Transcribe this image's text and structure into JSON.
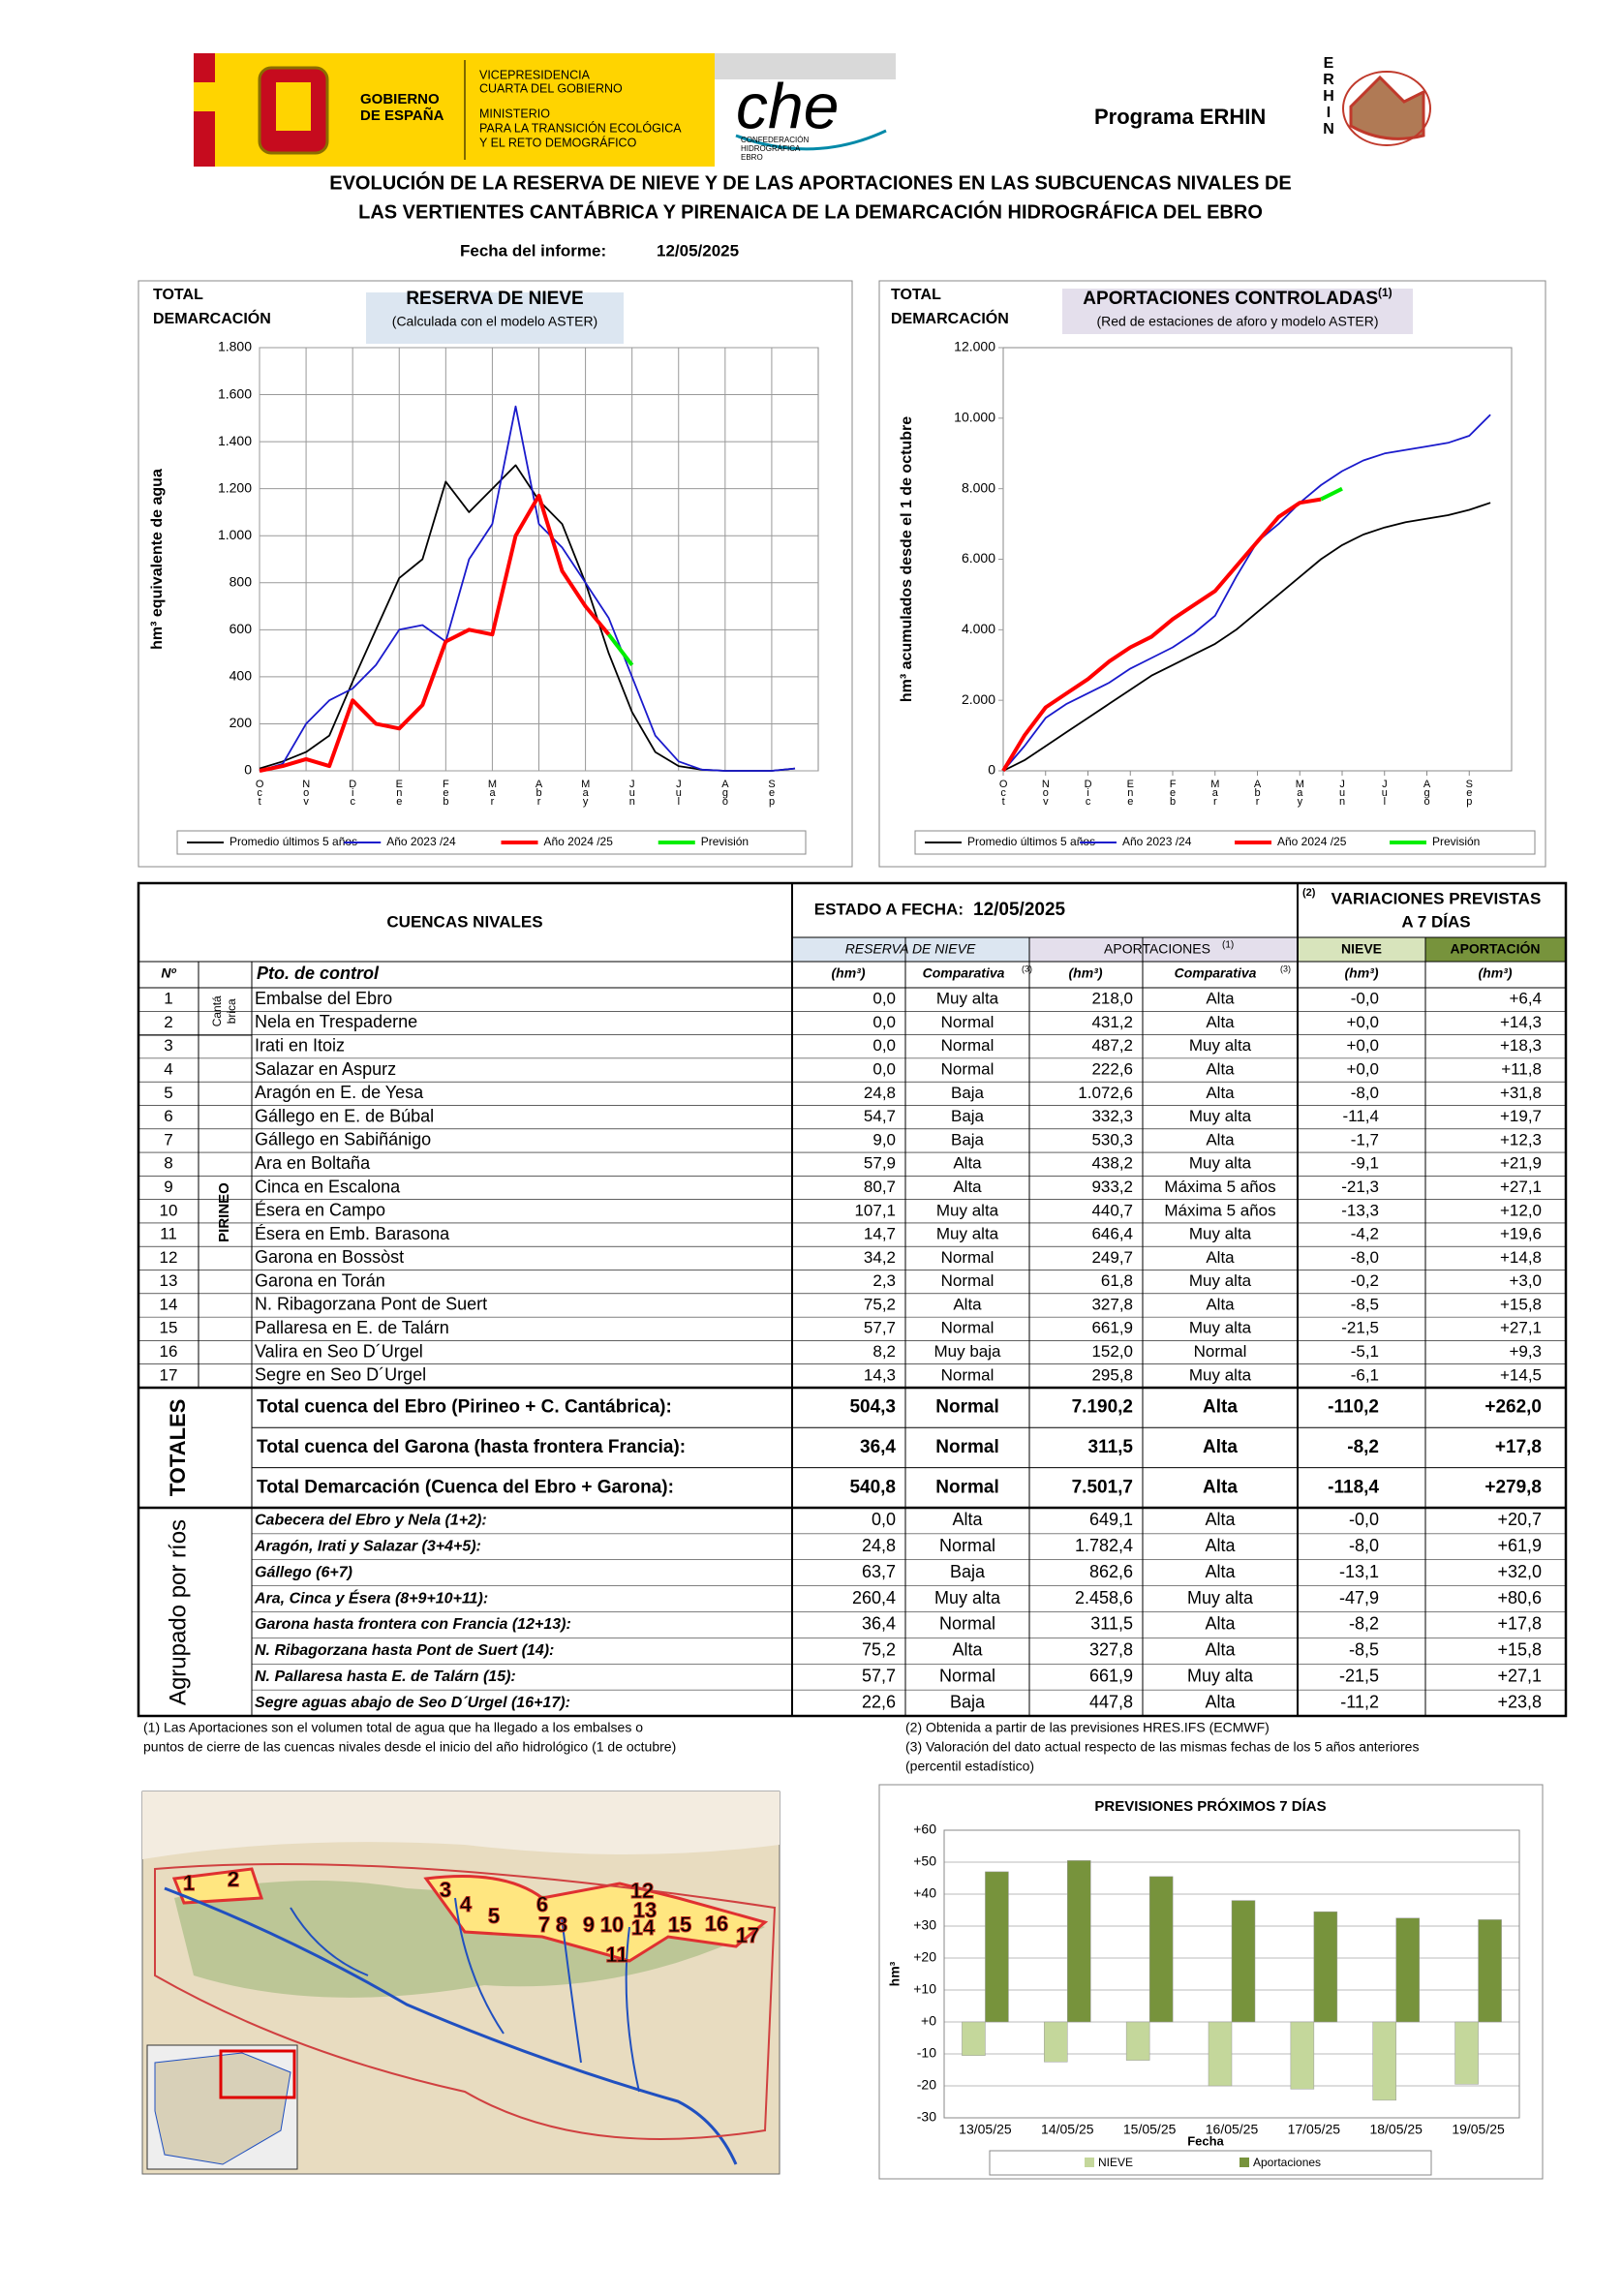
{
  "header": {
    "gobierno": [
      "GOBIERNO",
      "DE ESPAÑA"
    ],
    "ministerio": [
      "VICEPRESIDENCIA",
      "CUARTA DEL GOBIERNO",
      "MINISTERIO",
      "PARA LA TRANSICIÓN ECOLÓGICA",
      "Y EL RETO DEMOGRÁFICO"
    ],
    "che": "che",
    "che_sub": [
      "CONFEDERACIÓN",
      "HIDROGRÁFICA",
      "EBRO"
    ],
    "program": "Programa ERHIN",
    "erhin": [
      "E",
      "R",
      "H",
      "I",
      "N"
    ],
    "title": [
      "EVOLUCIÓN  DE  LA  RESERVA  DE  NIEVE  Y  DE  LAS APORTACIONES  EN  LAS SUBCUENCAS NIVALES DE",
      "LAS VERTIENTES CANTÁBRICA Y PIRENAICA DE LA  DEMARCACIÓN HIDROGRÁFICA DEL EBRO"
    ],
    "date_label": "Fecha del informe:",
    "date": "12/05/2025"
  },
  "chart_data": [
    {
      "type": "line",
      "corner_label": [
        "TOTAL",
        "DEMARCACIÓN"
      ],
      "title": "RESERVA DE NIEVE",
      "subtitle": "(Calculada con el modelo ASTER)",
      "y_label": "hm³ equivalente de agua",
      "categories": [
        "Oct",
        null,
        "Nov",
        null,
        "Dic",
        null,
        "Ene",
        null,
        "Feb",
        null,
        "Mar",
        null,
        "Abr",
        null,
        "May",
        null,
        "Jun",
        null,
        "Jul",
        null,
        "Ago",
        null,
        "Sep",
        null
      ],
      "series": [
        {
          "name": "Promedio últimos 5 años",
          "color": "#000000",
          "values": [
            10,
            40,
            80,
            150,
            380,
            600,
            820,
            900,
            1230,
            1100,
            1200,
            1300,
            1150,
            1050,
            800,
            500,
            250,
            80,
            20,
            5,
            0,
            0,
            0,
            10
          ]
        },
        {
          "name": "Año 2023 /24",
          "color": "#1a1acc",
          "values": [
            0,
            30,
            200,
            300,
            350,
            450,
            600,
            620,
            550,
            900,
            1050,
            1550,
            1050,
            950,
            800,
            650,
            400,
            150,
            40,
            5,
            0,
            0,
            0,
            10
          ]
        },
        {
          "name": "Año 2024 /25",
          "color": "#ff0000",
          "values": [
            0,
            20,
            50,
            20,
            300,
            200,
            180,
            280,
            550,
            600,
            580,
            1000,
            1170,
            850,
            700,
            580,
            null,
            null,
            null,
            null,
            null,
            null,
            null,
            null
          ]
        },
        {
          "name": "Previsión",
          "color": "#00ee00",
          "values": [
            null,
            null,
            null,
            null,
            null,
            null,
            null,
            null,
            null,
            null,
            null,
            null,
            null,
            null,
            null,
            580,
            450,
            null,
            null,
            null,
            null,
            null,
            null,
            null
          ]
        }
      ],
      "ylim": [
        0,
        1800
      ],
      "yticks": [
        0,
        200,
        400,
        600,
        800,
        {
          "value": 1000,
          "label": "1.000"
        },
        {
          "value": 1200,
          "label": "1.200"
        },
        {
          "value": 1400,
          "label": "1.400"
        },
        {
          "value": 1600,
          "label": "1.600"
        },
        {
          "value": 1800,
          "label": "1.800"
        }
      ],
      "grid": true,
      "legend": "bottom"
    },
    {
      "type": "line",
      "corner_label": [
        "TOTAL",
        "DEMARCACIÓN"
      ],
      "title": "APORTACIONES CONTROLADAS",
      "title_note": "(1)",
      "subtitle": "(Red de estaciones de aforo y modelo ASTER)",
      "y_label": "hm³ acumulados desde el 1 de octubre",
      "categories": [
        "Oct",
        null,
        "Nov",
        null,
        "Dic",
        null,
        "Ene",
        null,
        "Feb",
        null,
        "Mar",
        null,
        "Abr",
        null,
        "May",
        null,
        "Jun",
        null,
        "Jul",
        null,
        "Ago",
        null,
        "Sep",
        null
      ],
      "series": [
        {
          "name": "Promedio últimos 5 años",
          "color": "#000000",
          "values": [
            0,
            300,
            700,
            1100,
            1500,
            1900,
            2300,
            2700,
            3000,
            3300,
            3600,
            4000,
            4500,
            5000,
            5500,
            6000,
            6400,
            6700,
            6900,
            7050,
            7150,
            7250,
            7400,
            7600
          ]
        },
        {
          "name": "Año 2023 /24",
          "color": "#1a1acc",
          "values": [
            0,
            700,
            1500,
            1900,
            2200,
            2500,
            2900,
            3200,
            3500,
            3900,
            4400,
            5500,
            6500,
            7000,
            7600,
            8100,
            8500,
            8800,
            9000,
            9100,
            9200,
            9300,
            9500,
            10100
          ]
        },
        {
          "name": "Año 2024 /25",
          "color": "#ff0000",
          "values": [
            0,
            1000,
            1800,
            2200,
            2600,
            3100,
            3500,
            3800,
            4300,
            4700,
            5100,
            5800,
            6500,
            7200,
            7600,
            7700,
            null,
            null,
            null,
            null,
            null,
            null,
            null,
            null
          ]
        },
        {
          "name": "Previsión",
          "color": "#00ee00",
          "values": [
            null,
            null,
            null,
            null,
            null,
            null,
            null,
            null,
            null,
            null,
            null,
            null,
            null,
            null,
            null,
            7700,
            8000,
            null,
            null,
            null,
            null,
            null,
            null,
            null
          ]
        }
      ],
      "ylim": [
        0,
        12000
      ],
      "yticks": [
        0,
        {
          "value": 2000,
          "label": "2.000"
        },
        {
          "value": 4000,
          "label": "4.000"
        },
        {
          "value": 6000,
          "label": "6.000"
        },
        {
          "value": 8000,
          "label": "8.000"
        },
        {
          "value": 10000,
          "label": "10.000"
        },
        {
          "value": 12000,
          "label": "12.000"
        }
      ],
      "grid": false,
      "legend": "bottom"
    },
    {
      "type": "bar",
      "title": "PREVISIONES PRÓXIMOS 7 DÍAS",
      "y_label": "hm³",
      "x_label": "Fecha",
      "categories": [
        "13/05/25",
        "14/05/25",
        "15/05/25",
        "16/05/25",
        "17/05/25",
        "18/05/25",
        "19/05/25"
      ],
      "series": [
        {
          "name": "NIEVE",
          "color": "#c4d79b",
          "values": [
            -10.5,
            -12.5,
            -12,
            -20,
            -21,
            -24.5,
            -19.5
          ]
        },
        {
          "name": "Aportaciones",
          "color": "#77933c",
          "values": [
            47,
            50.5,
            45.5,
            38,
            34.5,
            32.5,
            32
          ]
        }
      ],
      "ylim": [
        -30,
        60
      ],
      "yticks": [
        {
          "value": 60,
          "label": "+60"
        },
        {
          "value": 50,
          "label": "+50"
        },
        {
          "value": 40,
          "label": "+40"
        },
        {
          "value": 30,
          "label": "+30"
        },
        {
          "value": 20,
          "label": "+20"
        },
        {
          "value": 10,
          "label": "+10"
        },
        {
          "value": 0,
          "label": "+0"
        },
        -10,
        -20,
        -30
      ],
      "grid": true,
      "legend": "bottom"
    }
  ],
  "table": {
    "h_cuencas": "CUENCAS NIVALES",
    "h_estado": "ESTADO A FECHA:",
    "h_date": "12/05/2025",
    "h_var_note": "(2)",
    "h_var": [
      "VARIACIONES PREVISTAS",
      "A 7 DÍAS"
    ],
    "h_reserva": "RESERVA DE NIEVE",
    "h_aport": "APORTACIONES",
    "h_aport_note": "(1)",
    "h_nieve": "NIEVE",
    "h_aportacion": "APORTACIÓN",
    "h_num": "Nº",
    "h_pto": "Pto. de control",
    "h_unit": "(hm³)",
    "h_comp": "Comparativa",
    "h_comp_note": "(3)",
    "g_cantabrica": [
      "Cantá",
      "brica"
    ],
    "g_pirineo": "PIRINEO",
    "rows": [
      [
        "1",
        "Embalse del Ebro",
        "0,0",
        "Muy alta",
        "218,0",
        "Alta",
        "-0,0",
        "+6,4"
      ],
      [
        "2",
        "Nela en Trespaderne",
        "0,0",
        "Normal",
        "431,2",
        "Alta",
        "+0,0",
        "+14,3"
      ],
      [
        "3",
        "Irati en Itoiz",
        "0,0",
        "Normal",
        "487,2",
        "Muy alta",
        "+0,0",
        "+18,3"
      ],
      [
        "4",
        "Salazar en Aspurz",
        "0,0",
        "Normal",
        "222,6",
        "Alta",
        "+0,0",
        "+11,8"
      ],
      [
        "5",
        "Aragón en E. de Yesa",
        "24,8",
        "Baja",
        "1.072,6",
        "Alta",
        "-8,0",
        "+31,8"
      ],
      [
        "6",
        "Gállego en E. de Búbal",
        "54,7",
        "Baja",
        "332,3",
        "Muy alta",
        "-11,4",
        "+19,7"
      ],
      [
        "7",
        "Gállego en Sabiñánigo",
        "9,0",
        "Baja",
        "530,3",
        "Alta",
        "-1,7",
        "+12,3"
      ],
      [
        "8",
        "Ara en Boltaña",
        "57,9",
        "Alta",
        "438,2",
        "Muy alta",
        "-9,1",
        "+21,9"
      ],
      [
        "9",
        "Cinca en Escalona",
        "80,7",
        "Alta",
        "933,2",
        "Máxima 5 años",
        "-21,3",
        "+27,1"
      ],
      [
        "10",
        "Ésera en Campo",
        "107,1",
        "Muy alta",
        "440,7",
        "Máxima 5 años",
        "-13,3",
        "+12,0"
      ],
      [
        "11",
        "Ésera en Emb. Barasona",
        "14,7",
        "Muy alta",
        "646,4",
        "Muy alta",
        "-4,2",
        "+19,6"
      ],
      [
        "12",
        "Garona en Bossòst",
        "34,2",
        "Normal",
        "249,7",
        "Alta",
        "-8,0",
        "+14,8"
      ],
      [
        "13",
        "Garona en Torán",
        "2,3",
        "Normal",
        "61,8",
        "Muy alta",
        "-0,2",
        "+3,0"
      ],
      [
        "14",
        "N. Ribagorzana Pont de Suert",
        "75,2",
        "Alta",
        "327,8",
        "Alta",
        "-8,5",
        "+15,8"
      ],
      [
        "15",
        "Pallaresa en E. de Talárn",
        "57,7",
        "Normal",
        "661,9",
        "Muy alta",
        "-21,5",
        "+27,1"
      ],
      [
        "16",
        "Valira en Seo D´Urgel",
        "8,2",
        "Muy baja",
        "152,0",
        "Normal",
        "-5,1",
        "+9,3"
      ],
      [
        "17",
        "Segre en Seo D´Urgel",
        "14,3",
        "Normal",
        "295,8",
        "Muy alta",
        "-6,1",
        "+14,5"
      ]
    ],
    "totals_label": "TOTALES",
    "totals": [
      [
        "Total cuenca del Ebro (Pirineo + C. Cantábrica):",
        "504,3",
        "Normal",
        "7.190,2",
        "Alta",
        "-110,2",
        "+262,0"
      ],
      [
        "Total cuenca del Garona (hasta frontera Francia):",
        "36,4",
        "Normal",
        "311,5",
        "Alta",
        "-8,2",
        "+17,8"
      ],
      [
        "Total Demarcación  (Cuenca del Ebro + Garona):",
        "540,8",
        "Normal",
        "7.501,7",
        "Alta",
        "-118,4",
        "+279,8"
      ]
    ],
    "grouped_label": "Agrupado por ríos",
    "grouped": [
      [
        "Cabecera del Ebro y Nela (1+2):",
        "0,0",
        "Alta",
        "649,1",
        "Alta",
        "-0,0",
        "+20,7"
      ],
      [
        "Aragón, Irati y Salazar (3+4+5):",
        "24,8",
        "Normal",
        "1.782,4",
        "Alta",
        "-8,0",
        "+61,9"
      ],
      [
        "Gállego (6+7)",
        "63,7",
        "Baja",
        "862,6",
        "Alta",
        "-13,1",
        "+32,0"
      ],
      [
        "Ara, Cinca y Ésera (8+9+10+11):",
        "260,4",
        "Muy alta",
        "2.458,6",
        "Muy alta",
        "-47,9",
        "+80,6"
      ],
      [
        "Garona hasta frontera con Francia (12+13):",
        "36,4",
        "Normal",
        "311,5",
        "Alta",
        "-8,2",
        "+17,8"
      ],
      [
        "N. Ribagorzana hasta Pont de Suert (14):",
        "75,2",
        "Alta",
        "327,8",
        "Alta",
        "-8,5",
        "+15,8"
      ],
      [
        "N. Pallaresa hasta E. de Talárn (15):",
        "57,7",
        "Normal",
        "661,9",
        "Muy alta",
        "-21,5",
        "+27,1"
      ],
      [
        "Segre aguas abajo de Seo D´Urgel (16+17):",
        "22,6",
        "Baja",
        "447,8",
        "Alta",
        "-11,2",
        "+23,8"
      ]
    ]
  },
  "notes": {
    "n1": [
      "(1)  Las Aportaciones son el volumen total de agua que ha llegado a los embalses o",
      "puntos de cierre de las cuencas nivales desde el inicio del año hidrológico (1 de octubre)"
    ],
    "n2": "(2) Obtenida a partir de las previsiones HRES.IFS (ECMWF)",
    "n3": [
      "(3) Valoración del dato actual respecto de las  mismas fechas de los 5 años anteriores",
      "(percentil estadístico)"
    ]
  },
  "map": {
    "labels": [
      "1",
      "2",
      "3",
      "4",
      "5",
      "6",
      "7",
      "8",
      "9",
      "10",
      "11",
      "12",
      "13",
      "14",
      "15",
      "16",
      "17"
    ]
  }
}
